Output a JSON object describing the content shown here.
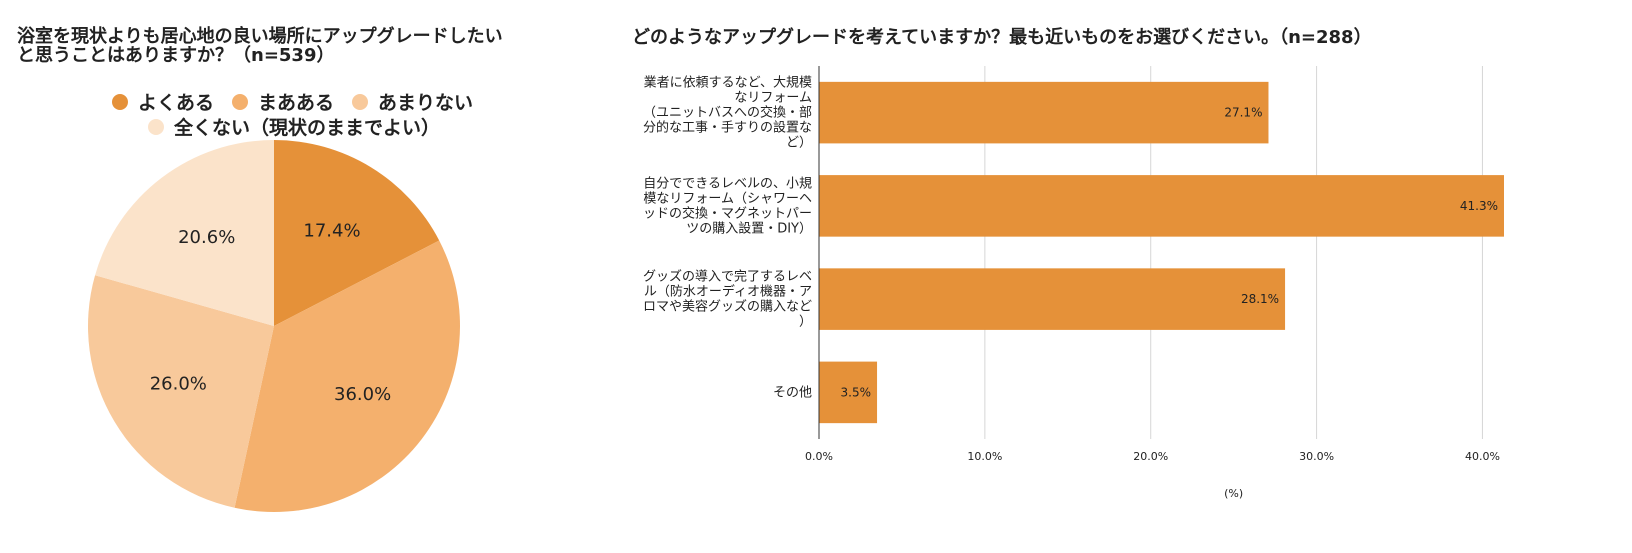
{
  "chart_data": [
    {
      "type": "pie",
      "title_lines": [
        "浴室を現状よりも居心地の良い場所にアップグレードしたい",
        "と思うことはありますか？（n=539）"
      ],
      "legend_position": "top",
      "categories": [
        "よくある",
        "まあある",
        "あまりない",
        "全くない（現状のままでよい）"
      ],
      "values": [
        17.4,
        36.0,
        26.0,
        20.6
      ],
      "value_labels": [
        "17.4%",
        "36.0%",
        "26.0%",
        "20.6%"
      ],
      "colors": [
        "#E59139",
        "#F4B06D",
        "#F8C99B",
        "#FBE3CA"
      ]
    },
    {
      "type": "bar",
      "orientation": "horizontal",
      "title": "どのようなアップグレードを考えていますか？最も近いものをお選びください。（n=288）",
      "category_label_lines": [
        [
          "業者に依頼するなど、大規模",
          "なリフォーム",
          "（ユニットバスへの交換・部",
          "分的な工事・手すりの設置な",
          "ど）"
        ],
        [
          "自分でできるレベルの、小規",
          "模なリフォーム（シャワーヘ",
          "ッドの交換・マグネットパー",
          "ツの購入設置・DIY）"
        ],
        [
          "グッズの導入で完了するレベ",
          "ル（防水オーディオ機器・ア",
          "ロマや美容グッズの購入など",
          "）"
        ],
        [
          "その他"
        ]
      ],
      "values": [
        27.1,
        41.3,
        28.1,
        3.5
      ],
      "value_labels": [
        "27.1%",
        "41.3%",
        "28.1%",
        "3.5%"
      ],
      "x_ticks": [
        0,
        10,
        20,
        30,
        40
      ],
      "x_tick_labels": [
        "0.0%",
        "10.0%",
        "20.0%",
        "30.0%",
        "40.0%"
      ],
      "xlim": [
        0,
        41.3
      ],
      "xlabel": "(%)",
      "grid": true,
      "bar_color": "#E59139"
    }
  ]
}
